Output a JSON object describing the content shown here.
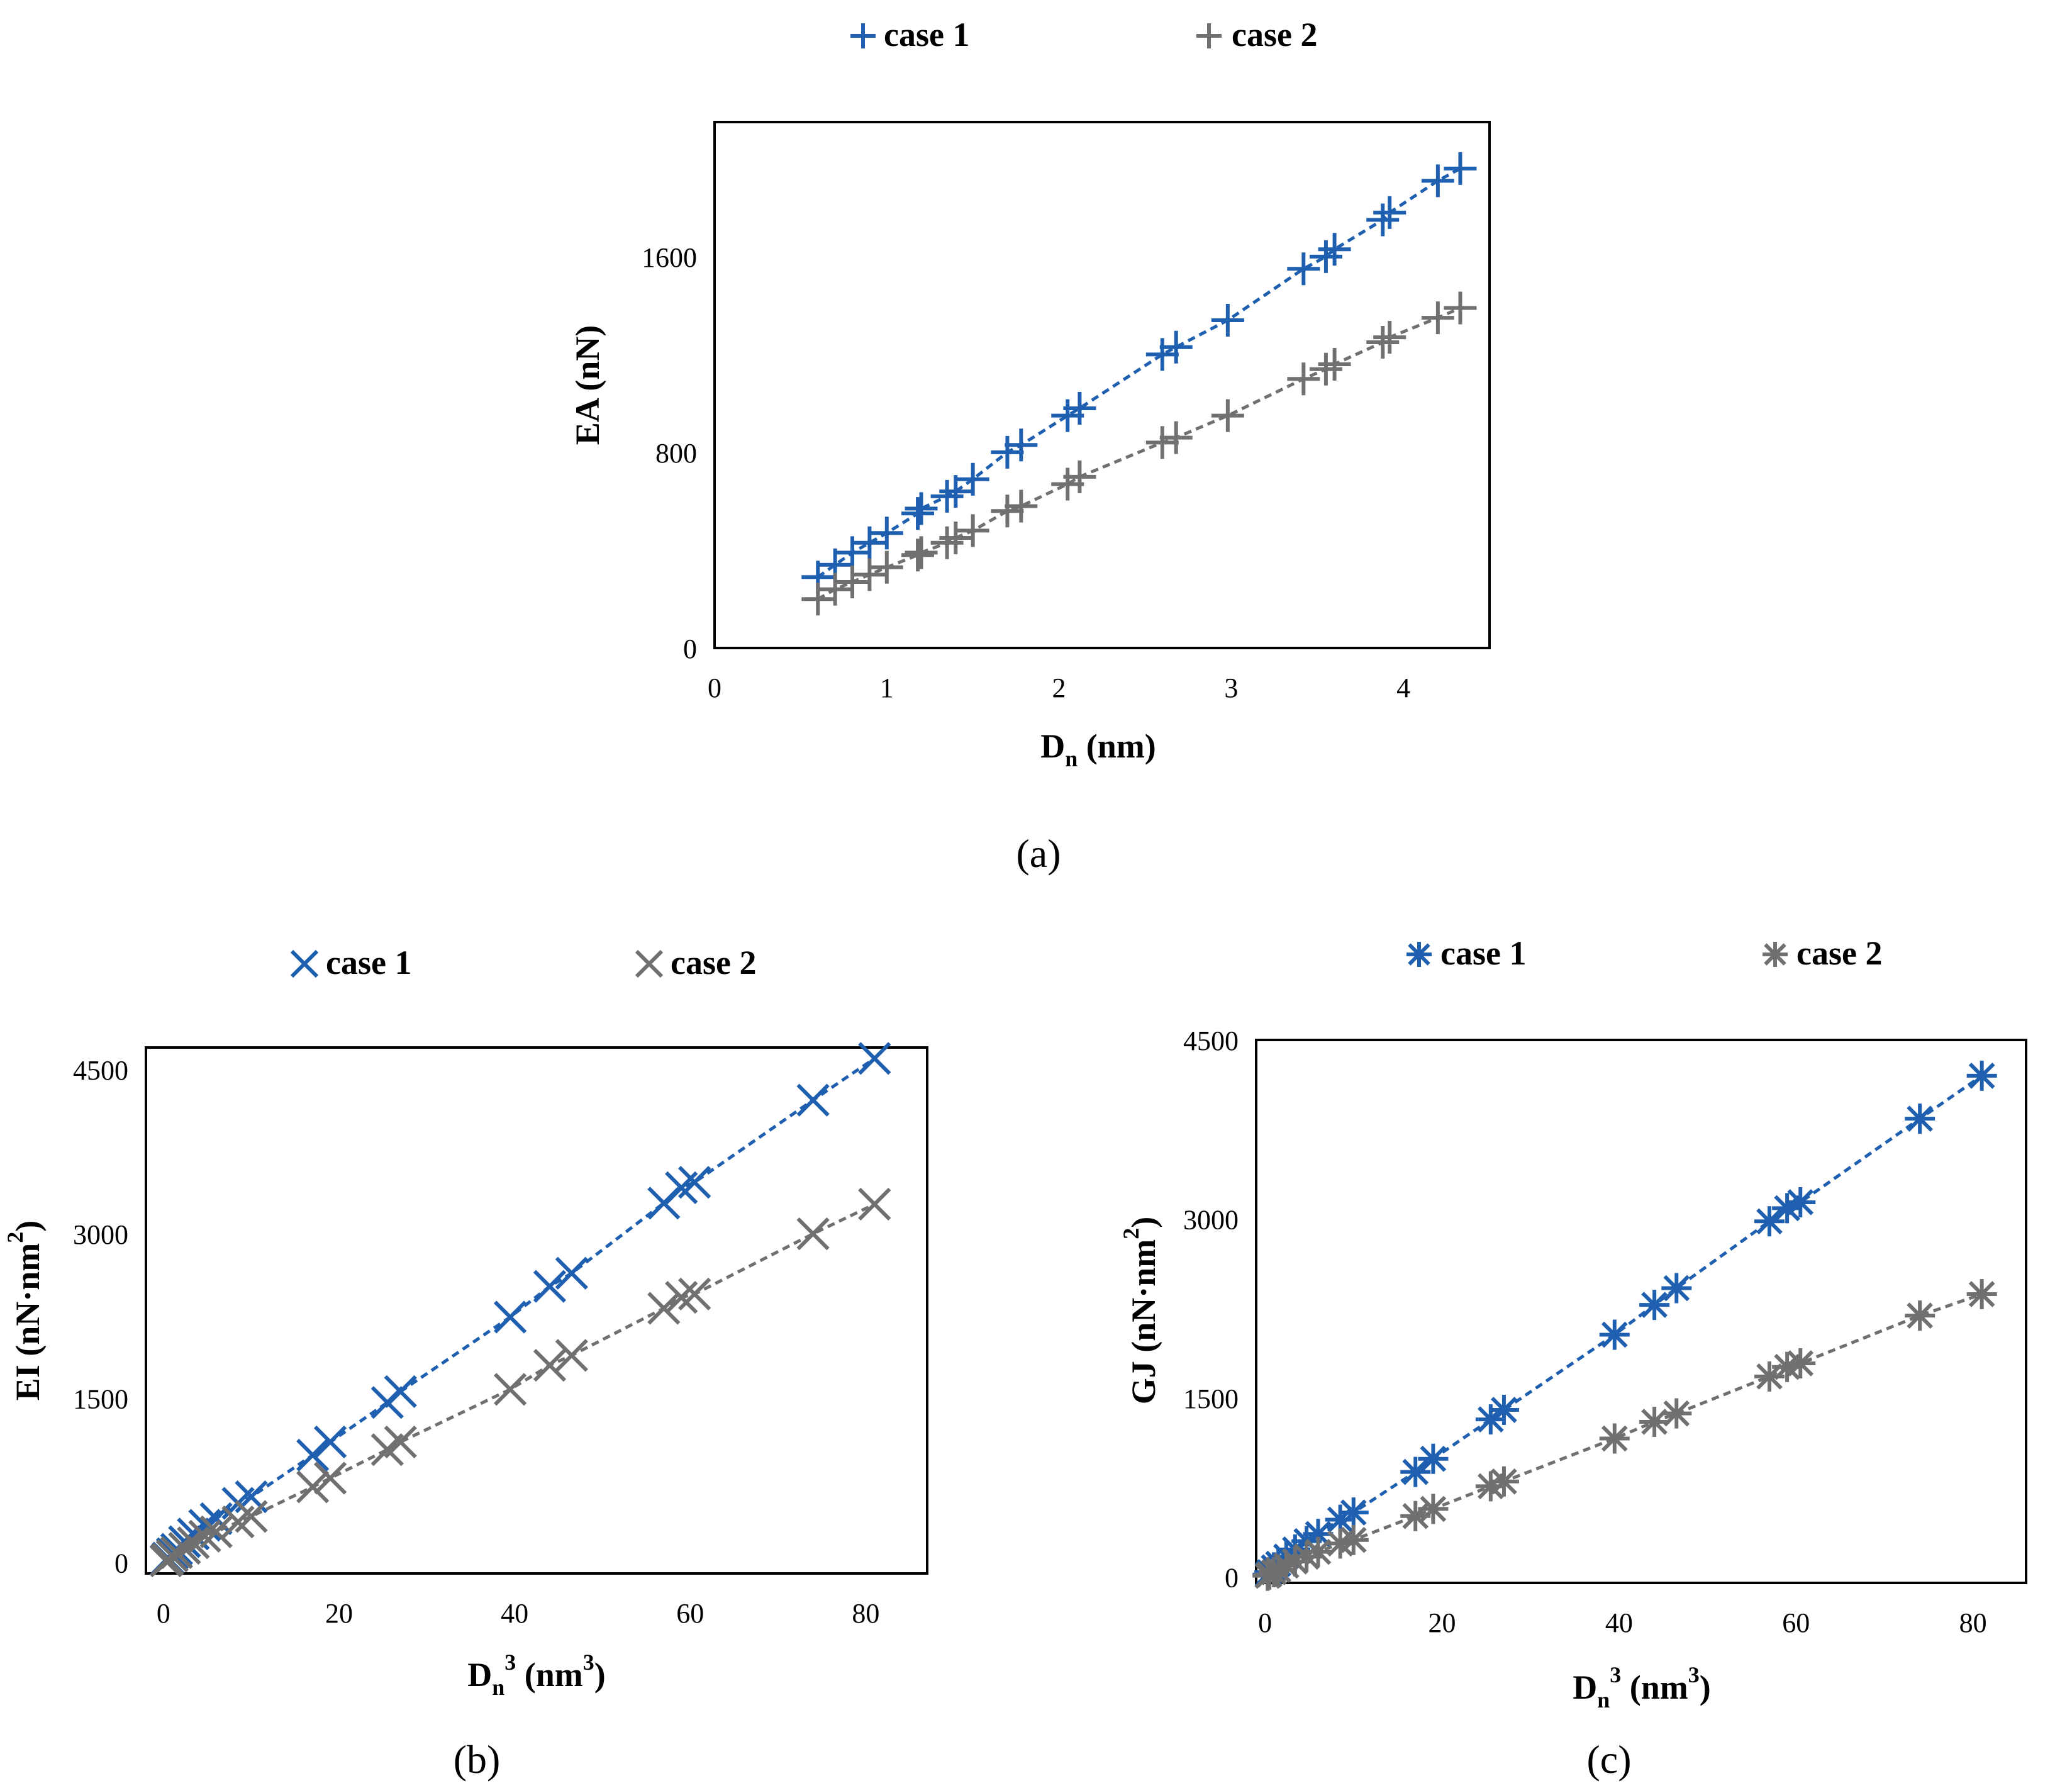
{
  "colors": {
    "case1": "#1f5fb0",
    "case2": "#707070",
    "axis": "#000000"
  },
  "chart_data": [
    {
      "id": "a",
      "type": "scatter",
      "panel_label": "a",
      "marker": "plus",
      "xlabel": "D",
      "xlabel_sub": "n",
      "xlabel_suffix": " (nm)",
      "ylabel": "EA (nN)",
      "xlim": [
        0,
        4.5
      ],
      "ylim": [
        0,
        2150
      ],
      "xticks": [
        0,
        1,
        2,
        3,
        4
      ],
      "yticks": [
        0,
        800,
        1600
      ],
      "legend": [
        "case 1",
        "case 2"
      ],
      "series": [
        {
          "name": "case 1",
          "x": [
            0.6,
            0.7,
            0.8,
            0.9,
            1.0,
            1.18,
            1.2,
            1.35,
            1.4,
            1.5,
            1.7,
            1.78,
            2.05,
            2.12,
            2.6,
            2.68,
            2.98,
            3.42,
            3.55,
            3.6,
            3.88,
            3.92,
            4.2,
            4.33
          ],
          "y": [
            290,
            340,
            390,
            430,
            470,
            550,
            570,
            620,
            640,
            690,
            800,
            830,
            950,
            980,
            1200,
            1230,
            1340,
            1550,
            1600,
            1630,
            1750,
            1780,
            1910,
            1960
          ]
        },
        {
          "name": "case 2",
          "x": [
            0.6,
            0.7,
            0.8,
            0.9,
            1.0,
            1.18,
            1.2,
            1.35,
            1.4,
            1.5,
            1.7,
            1.78,
            2.05,
            2.12,
            2.6,
            2.68,
            2.98,
            3.42,
            3.55,
            3.6,
            3.88,
            3.92,
            4.2,
            4.33
          ],
          "y": [
            200,
            240,
            270,
            300,
            330,
            380,
            390,
            430,
            450,
            480,
            560,
            580,
            670,
            700,
            840,
            860,
            950,
            1100,
            1140,
            1160,
            1250,
            1270,
            1350,
            1390
          ]
        }
      ]
    },
    {
      "id": "b",
      "type": "scatter",
      "panel_label": "b",
      "marker": "x",
      "xlabel": "D",
      "xlabel_sub": "n",
      "xlabel_sup": "3",
      "xlabel_suffix": " (nm",
      "xlabel_suffix_sup": "3",
      "xlabel_close": ")",
      "ylabel": "EI (nN·nm",
      "ylabel_sup": "2",
      "ylabel_close": ")",
      "xlim": [
        -2,
        87
      ],
      "ylim": [
        -100,
        4700
      ],
      "xticks": [
        0,
        20,
        40,
        60,
        80
      ],
      "yticks": [
        0,
        1500,
        3000,
        4500
      ],
      "legend": [
        "case 1",
        "case 2"
      ],
      "series": [
        {
          "name": "case 1",
          "x": [
            0.3,
            0.5,
            1,
            1.5,
            2.4,
            3.4,
            4.7,
            6,
            8.5,
            10,
            17,
            19,
            25.5,
            27,
            39.5,
            44,
            46.5,
            57,
            59,
            60.5,
            74,
            81
          ],
          "y": [
            20,
            40,
            80,
            120,
            190,
            260,
            340,
            400,
            540,
            600,
            980,
            1100,
            1460,
            1560,
            2240,
            2520,
            2640,
            3280,
            3420,
            3470,
            4220,
            4600
          ]
        },
        {
          "name": "case 2",
          "x": [
            0.3,
            0.5,
            1,
            1.5,
            2.4,
            3.4,
            4.7,
            6,
            8.5,
            10,
            17,
            19,
            25.5,
            27,
            39.5,
            44,
            46.5,
            57,
            59,
            60.5,
            74,
            81
          ],
          "y": [
            15,
            30,
            60,
            90,
            130,
            180,
            240,
            280,
            370,
            420,
            690,
            770,
            1030,
            1100,
            1580,
            1800,
            1890,
            2320,
            2420,
            2450,
            3000,
            3270
          ]
        }
      ]
    },
    {
      "id": "c",
      "type": "scatter",
      "panel_label": "c",
      "marker": "asterisk",
      "xlabel": "D",
      "xlabel_sub": "n",
      "xlabel_sup": "3",
      "xlabel_suffix": " (nm",
      "xlabel_suffix_sup": "3",
      "xlabel_close": ")",
      "ylabel": "GJ (nN·nm",
      "ylabel_sup": "2",
      "ylabel_close": ")",
      "xlim": [
        -1,
        86
      ],
      "ylim": [
        -50,
        4500
      ],
      "xticks": [
        0,
        20,
        40,
        60,
        80
      ],
      "yticks": [
        0,
        1500,
        3000,
        4500
      ],
      "legend": [
        "case 1",
        "case 2"
      ],
      "series": [
        {
          "name": "case 1",
          "x": [
            0.3,
            0.5,
            1,
            1.5,
            2.4,
            3.4,
            4.7,
            6,
            8.5,
            10,
            17,
            19,
            25.5,
            27,
            39.5,
            44,
            46.5,
            57,
            59,
            60.5,
            74,
            81
          ],
          "y": [
            20,
            40,
            80,
            110,
            170,
            230,
            300,
            360,
            480,
            540,
            880,
            990,
            1320,
            1400,
            2030,
            2280,
            2420,
            2980,
            3090,
            3140,
            3840,
            4200
          ]
        },
        {
          "name": "case 2",
          "x": [
            0.3,
            0.5,
            1,
            1.5,
            2.4,
            3.4,
            4.7,
            6,
            8.5,
            10,
            17,
            19,
            25.5,
            27,
            39.5,
            44,
            46.5,
            57,
            59,
            60.5,
            74,
            81
          ],
          "y": [
            10,
            20,
            40,
            60,
            95,
            130,
            170,
            210,
            280,
            310,
            510,
            570,
            760,
            800,
            1160,
            1300,
            1370,
            1680,
            1760,
            1790,
            2190,
            2370
          ]
        }
      ]
    }
  ]
}
